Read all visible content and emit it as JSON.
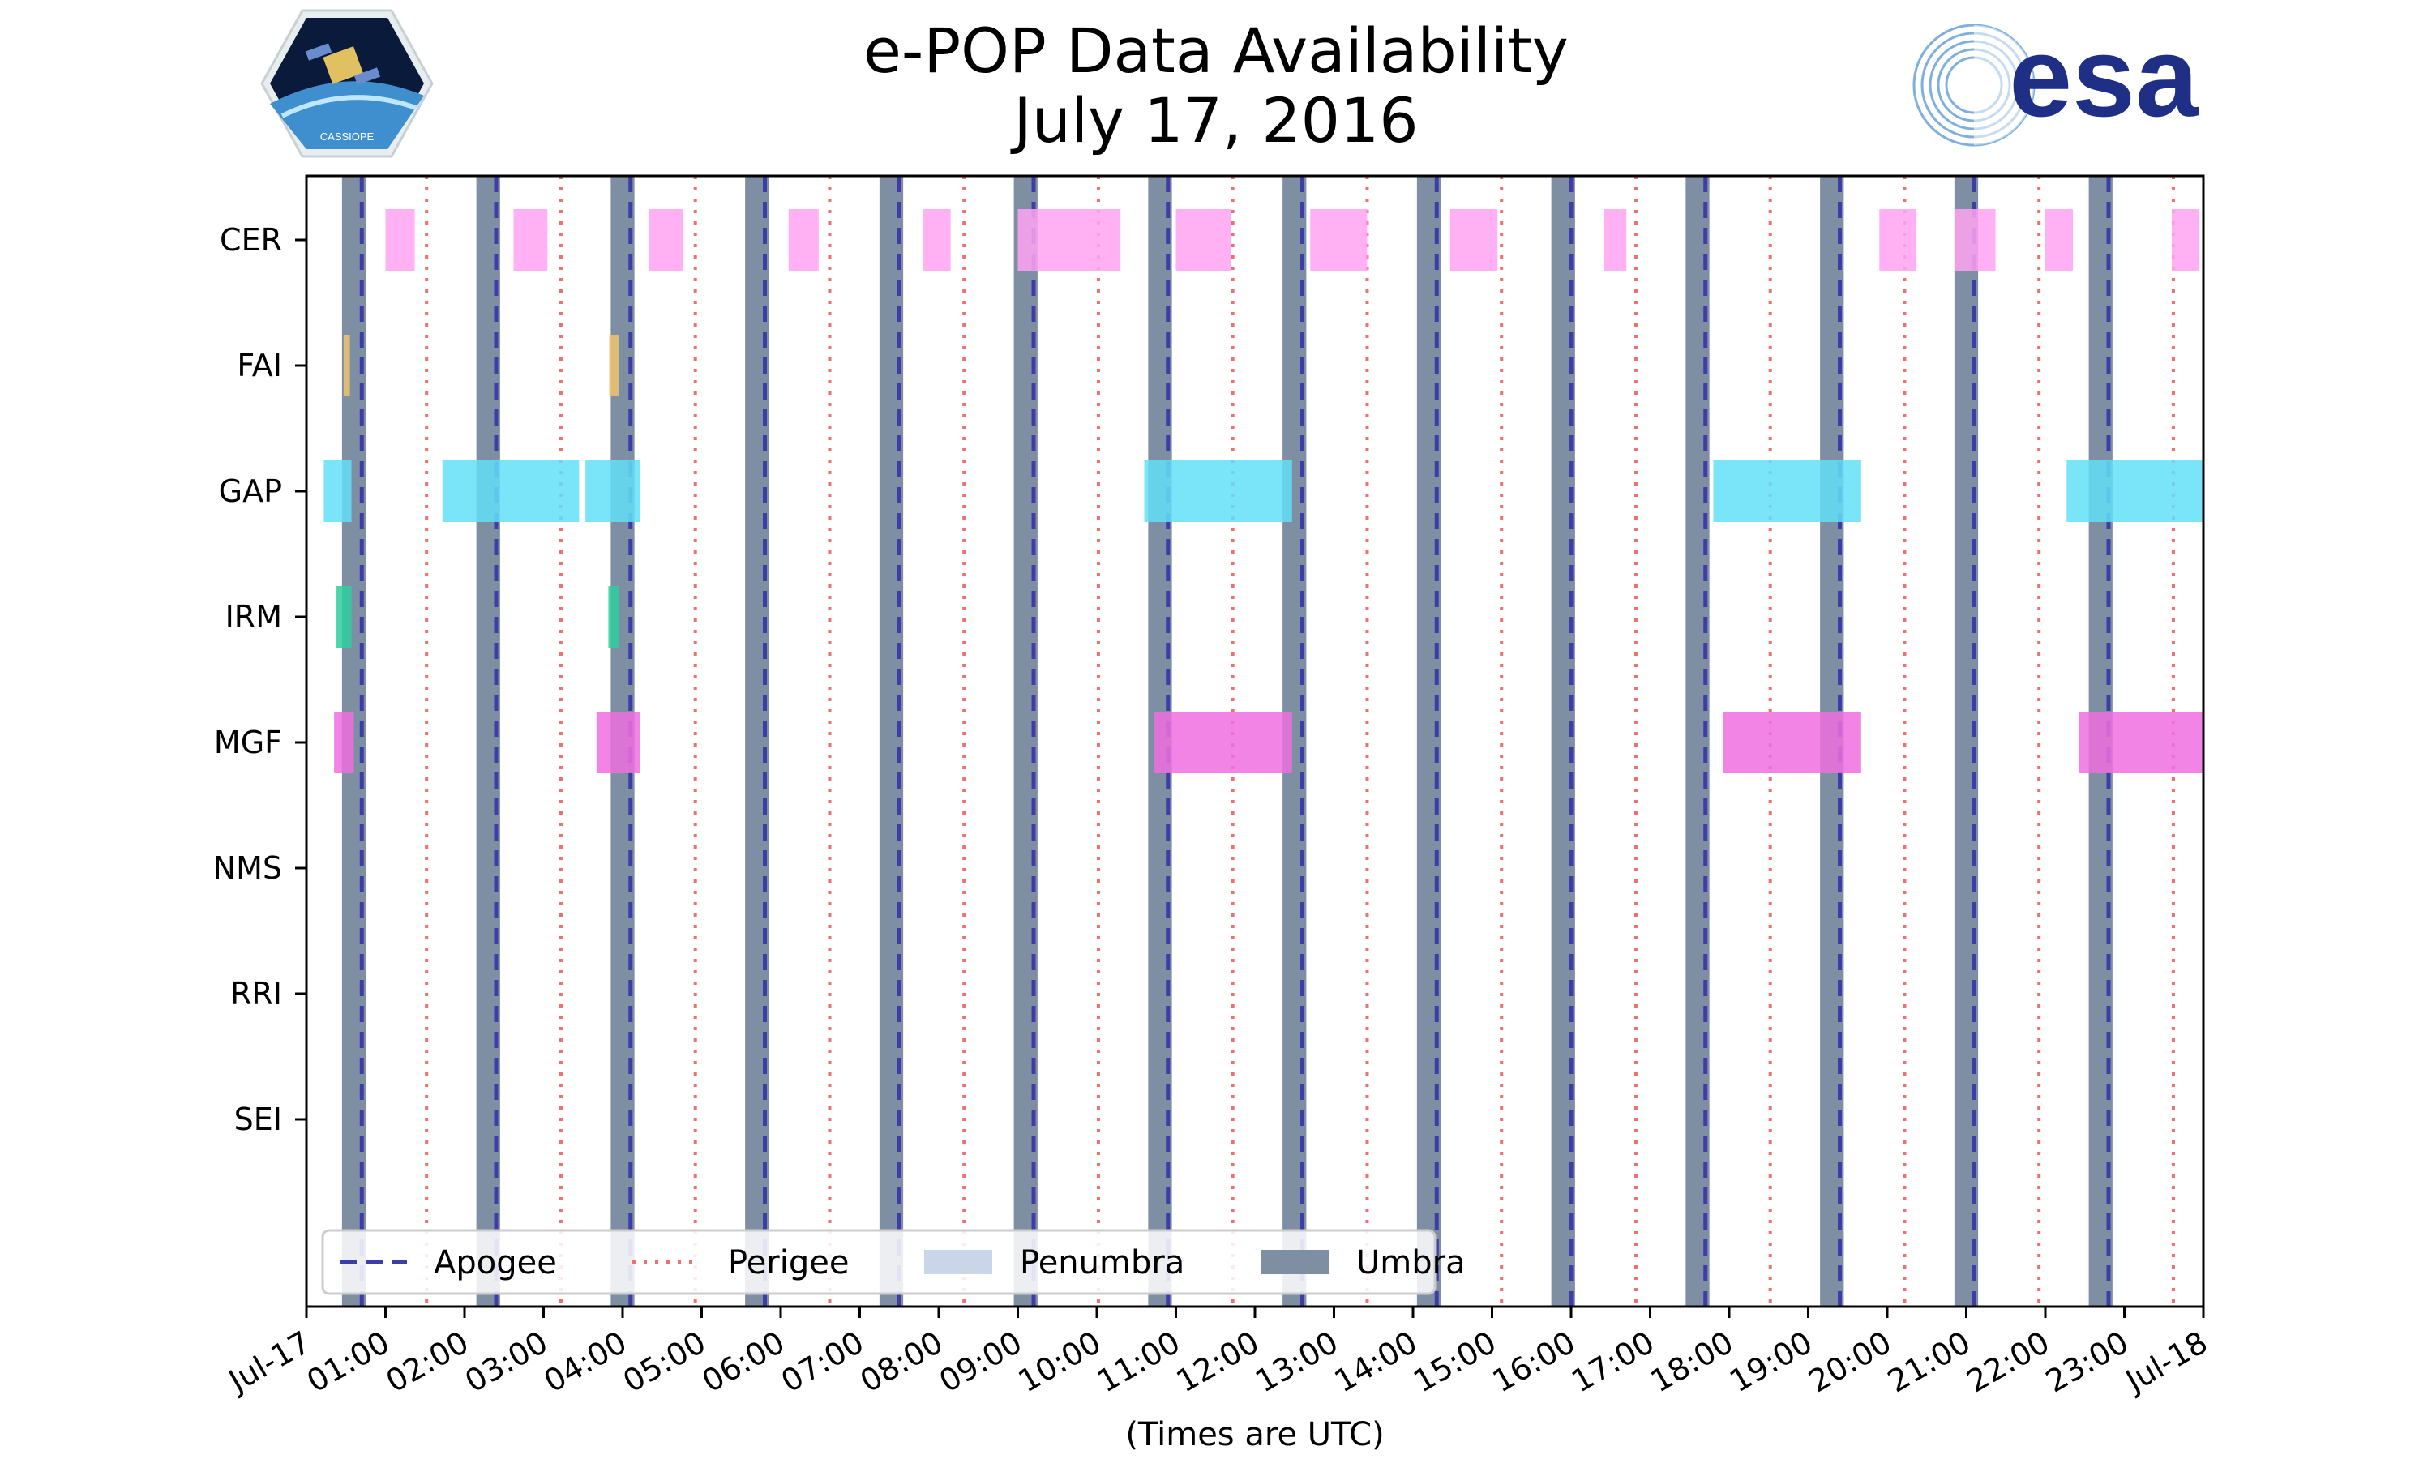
{
  "page": {
    "title_line1": "e-POP Data Availability",
    "title_line2": "July 17, 2016",
    "logo_left_text": "CASSIOPE",
    "logo_right_text": "esa"
  },
  "chart_data": {
    "type": "timeline",
    "xlabel": "(Times are UTC)",
    "xlim_hours": [
      0,
      24
    ],
    "x_tick_labels": [
      "Jul-17",
      "01:00",
      "02:00",
      "03:00",
      "04:00",
      "05:00",
      "06:00",
      "07:00",
      "08:00",
      "09:00",
      "10:00",
      "11:00",
      "12:00",
      "13:00",
      "14:00",
      "15:00",
      "16:00",
      "17:00",
      "18:00",
      "19:00",
      "20:00",
      "21:00",
      "22:00",
      "23:00",
      "Jul-18"
    ],
    "instruments": [
      "CER",
      "FAI",
      "GAP",
      "IRM",
      "MGF",
      "NMS",
      "RRI",
      "SEI"
    ],
    "instrument_colors": {
      "CER": "#ffa3f2",
      "FAI": "#f0c36e",
      "GAP": "#63dff7",
      "IRM": "#2ecf9e",
      "MGF": "#ef6fdf",
      "NMS": "#999999",
      "RRI": "#999999",
      "SEI": "#999999"
    },
    "intervals_hours": {
      "CER": [
        [
          1.0,
          1.37
        ],
        [
          2.62,
          3.05
        ],
        [
          4.33,
          4.77
        ],
        [
          6.1,
          6.48
        ],
        [
          7.8,
          8.15
        ],
        [
          9.0,
          10.3
        ],
        [
          11.0,
          11.7
        ],
        [
          12.7,
          13.42
        ],
        [
          14.47,
          15.07
        ],
        [
          16.42,
          16.7
        ],
        [
          19.9,
          20.37
        ],
        [
          20.85,
          21.37
        ],
        [
          22.0,
          22.35
        ],
        [
          23.6,
          23.95
        ]
      ],
      "FAI": [
        [
          0.47,
          0.55
        ],
        [
          3.83,
          3.95
        ]
      ],
      "GAP": [
        [
          0.22,
          0.57
        ],
        [
          1.72,
          3.45
        ],
        [
          3.53,
          4.22
        ],
        [
          10.6,
          12.47
        ],
        [
          17.8,
          19.67
        ],
        [
          22.27,
          24.0
        ]
      ],
      "IRM": [
        [
          0.38,
          0.57
        ],
        [
          3.82,
          3.95
        ]
      ],
      "MGF": [
        [
          0.35,
          0.6
        ],
        [
          3.67,
          4.22
        ],
        [
          10.72,
          12.47
        ],
        [
          17.92,
          19.67
        ],
        [
          22.42,
          24.0
        ]
      ],
      "NMS": [],
      "RRI": [],
      "SEI": []
    },
    "umbra_hours": [
      [
        0.45,
        0.75
      ],
      [
        2.15,
        2.45
      ],
      [
        3.85,
        4.15
      ],
      [
        5.55,
        5.85
      ],
      [
        7.25,
        7.55
      ],
      [
        8.95,
        9.25
      ],
      [
        10.65,
        10.95
      ],
      [
        12.35,
        12.65
      ],
      [
        14.05,
        14.35
      ],
      [
        15.75,
        16.05
      ],
      [
        17.45,
        17.75
      ],
      [
        19.15,
        19.45
      ],
      [
        20.85,
        21.15
      ],
      [
        22.55,
        22.85
      ]
    ],
    "apogee_hours": [
      0.7,
      2.4,
      4.1,
      5.8,
      7.5,
      9.2,
      10.9,
      12.6,
      14.3,
      16.0,
      17.7,
      19.4,
      21.1,
      22.8
    ],
    "perigee_hours": [
      1.52,
      3.22,
      4.92,
      6.62,
      8.32,
      10.02,
      11.72,
      13.42,
      15.12,
      16.82,
      18.52,
      20.22,
      21.92,
      23.62
    ],
    "legend": {
      "placement": "lower-left",
      "entries": [
        "Apogee",
        "Perigee",
        "Penumbra",
        "Umbra"
      ],
      "colors": {
        "apogee": "#3d3da8",
        "perigee": "#f07070",
        "penumbra": "#c9d6e8",
        "umbra": "#7f8fa3"
      }
    },
    "grid": false
  }
}
